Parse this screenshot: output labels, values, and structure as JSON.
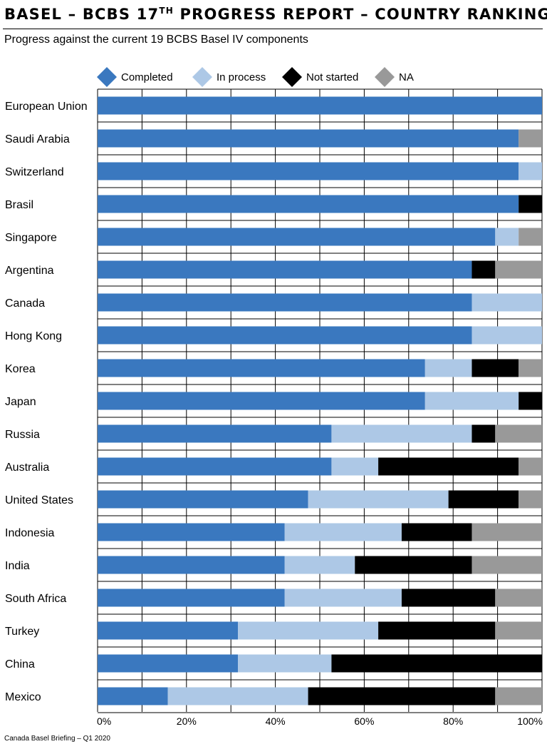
{
  "header": {
    "title_main": "BASEL – BCBS 17",
    "title_sup": "TH",
    "title_rest": " PROGRESS REPORT – COUNTRY RANKING",
    "subtitle": "Progress against the current 19 BCBS Basel IV components"
  },
  "footer": {
    "source": "Canada Basel Briefing – Q1 2020"
  },
  "chart_data": {
    "type": "bar",
    "orientation": "horizontal",
    "stacked": true,
    "normalized_to": 19,
    "categories": [
      "European Union",
      "Saudi Arabia",
      "Switzerland",
      "Brasil",
      "Singapore",
      "Argentina",
      "Canada",
      "Hong Kong",
      "Korea",
      "Japan",
      "Russia",
      "Australia",
      "United States",
      "Indonesia",
      "India",
      "South Africa",
      "Turkey",
      "China",
      "Mexico"
    ],
    "series": [
      {
        "name": "Completed",
        "color": "#3a78bf",
        "values": [
          19,
          18,
          18,
          18,
          17,
          16,
          16,
          16,
          14,
          14,
          10,
          10,
          9,
          8,
          8,
          8,
          6,
          6,
          3
        ]
      },
      {
        "name": "In process",
        "color": "#adc8e6",
        "values": [
          0,
          0,
          1,
          0,
          1,
          0,
          3,
          3,
          2,
          4,
          6,
          2,
          6,
          5,
          3,
          5,
          6,
          4,
          6
        ]
      },
      {
        "name": "Not started",
        "color": "#000000",
        "values": [
          0,
          0,
          0,
          1,
          0,
          1,
          0,
          0,
          2,
          1,
          1,
          6,
          3,
          3,
          5,
          4,
          5,
          9,
          8
        ]
      },
      {
        "name": "NA",
        "color": "#999999",
        "values": [
          0,
          1,
          0,
          0,
          1,
          2,
          0,
          0,
          1,
          0,
          2,
          1,
          1,
          3,
          3,
          2,
          2,
          0,
          2
        ]
      }
    ],
    "xlim": [
      0,
      100
    ],
    "x_ticks": [
      "0%",
      "20%",
      "40%",
      "60%",
      "80%",
      "100%"
    ],
    "grid": true,
    "legend": "top"
  }
}
